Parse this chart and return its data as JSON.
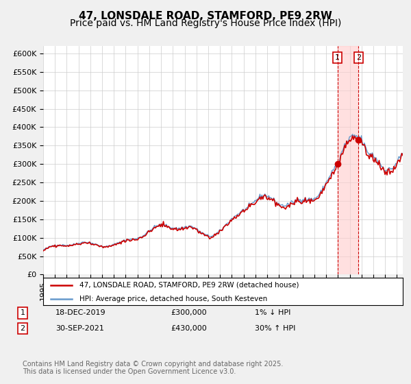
{
  "title": "47, LONSDALE ROAD, STAMFORD, PE9 2RW",
  "subtitle": "Price paid vs. HM Land Registry's House Price Index (HPI)",
  "ylim": [
    0,
    620000
  ],
  "yticks": [
    0,
    50000,
    100000,
    150000,
    200000,
    250000,
    300000,
    350000,
    400000,
    450000,
    500000,
    550000,
    600000
  ],
  "ytick_labels": [
    "£0",
    "£50K",
    "£100K",
    "£150K",
    "£200K",
    "£250K",
    "£300K",
    "£350K",
    "£400K",
    "£450K",
    "£500K",
    "£550K",
    "£600K"
  ],
  "xlim_start": 1995.0,
  "xlim_end": 2025.5,
  "hpi_color": "#6699cc",
  "price_color": "#cc0000",
  "marker_color": "#cc0000",
  "vline_shade_color": "#ffcccc",
  "label1": "47, LONSDALE ROAD, STAMFORD, PE9 2RW (detached house)",
  "label2": "HPI: Average price, detached house, South Kesteven",
  "transaction1_date": 2019.96,
  "transaction1_price": 300000,
  "transaction2_date": 2021.75,
  "transaction2_price": 430000,
  "footnote": "Contains HM Land Registry data © Crown copyright and database right 2025.\nThis data is licensed under the Open Government Licence v3.0.",
  "bg_color": "#f0f0f0",
  "plot_bg_color": "#ffffff",
  "grid_color": "#cccccc",
  "title_fontsize": 11,
  "subtitle_fontsize": 10,
  "tick_fontsize": 8,
  "footnote_fontsize": 7
}
